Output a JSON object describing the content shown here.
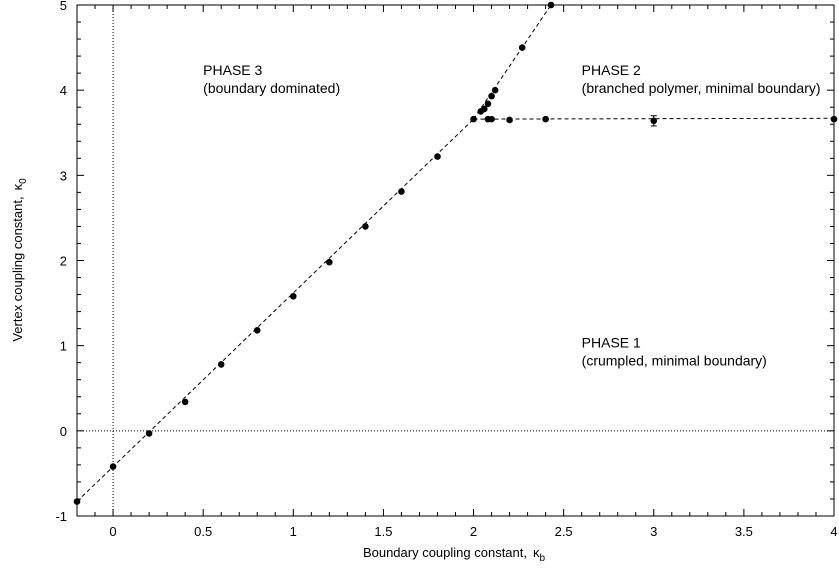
{
  "chart_data": {
    "type": "scatter",
    "xlabel": "Boundary coupling constant,",
    "xlabel_symbol": "κ",
    "xlabel_sub": "b",
    "ylabel": "Vertex coupling constant,",
    "ylabel_symbol": "κ",
    "ylabel_sub": "0",
    "xlim": [
      -0.2,
      4
    ],
    "ylim": [
      -1,
      5
    ],
    "xticks": [
      0,
      0.5,
      1,
      1.5,
      2,
      2.5,
      3,
      3.5,
      4
    ],
    "xtick_labels": [
      "0",
      "0.5",
      "1",
      "1.5",
      "2",
      "2.5",
      "3",
      "3.5",
      "4"
    ],
    "yticks": [
      -1,
      0,
      1,
      2,
      3,
      4,
      5
    ],
    "ytick_labels": [
      "-1",
      "0",
      "1",
      "2",
      "3",
      "4",
      "5"
    ],
    "grid": false,
    "reference_lines": [
      {
        "orientation": "vertical",
        "value": 0
      },
      {
        "orientation": "horizontal",
        "value": 0
      }
    ],
    "series": [
      {
        "points": [
          {
            "x": -0.2,
            "y": -0.83
          },
          {
            "x": 0.0,
            "y": -0.42
          },
          {
            "x": 0.2,
            "y": -0.03
          },
          {
            "x": 0.4,
            "y": 0.34
          },
          {
            "x": 0.6,
            "y": 0.78
          },
          {
            "x": 0.8,
            "y": 1.18
          },
          {
            "x": 1.0,
            "y": 1.58
          },
          {
            "x": 1.2,
            "y": 1.98
          },
          {
            "x": 1.4,
            "y": 2.4
          },
          {
            "x": 1.6,
            "y": 2.81
          },
          {
            "x": 1.8,
            "y": 3.22
          },
          {
            "x": 2.0,
            "y": 3.66
          }
        ],
        "line": [
          [
            -0.2,
            -0.83
          ],
          [
            2.0,
            3.66
          ]
        ]
      },
      {
        "points": [
          {
            "x": 2.04,
            "y": 3.75
          },
          {
            "x": 2.06,
            "y": 3.78
          },
          {
            "x": 2.08,
            "y": 3.84
          },
          {
            "x": 2.1,
            "y": 3.93
          },
          {
            "x": 2.12,
            "y": 4.0
          },
          {
            "x": 2.27,
            "y": 4.5
          },
          {
            "x": 2.43,
            "y": 5.0
          }
        ],
        "line": [
          [
            2.0,
            3.66
          ],
          [
            2.43,
            5.0
          ]
        ]
      },
      {
        "points": [
          {
            "x": 2.08,
            "y": 3.66
          },
          {
            "x": 2.1,
            "y": 3.66
          },
          {
            "x": 2.2,
            "y": 3.65
          },
          {
            "x": 2.4,
            "y": 3.66
          },
          {
            "x": 3.0,
            "y": 3.64,
            "err": 0.06
          },
          {
            "x": 4.0,
            "y": 3.66
          }
        ],
        "line": [
          [
            2.0,
            3.66
          ],
          [
            4.0,
            3.67
          ]
        ]
      }
    ],
    "annotations": [
      {
        "lines": [
          "PHASE 3",
          "(boundary dominated)"
        ],
        "x": 0.5,
        "y": 4.18
      },
      {
        "lines": [
          "PHASE 2",
          "(branched polymer, minimal boundary)"
        ],
        "x": 2.6,
        "y": 4.18
      },
      {
        "lines": [
          "PHASE 1",
          "(crumpled, minimal boundary)"
        ],
        "x": 2.6,
        "y": 0.98
      }
    ]
  }
}
